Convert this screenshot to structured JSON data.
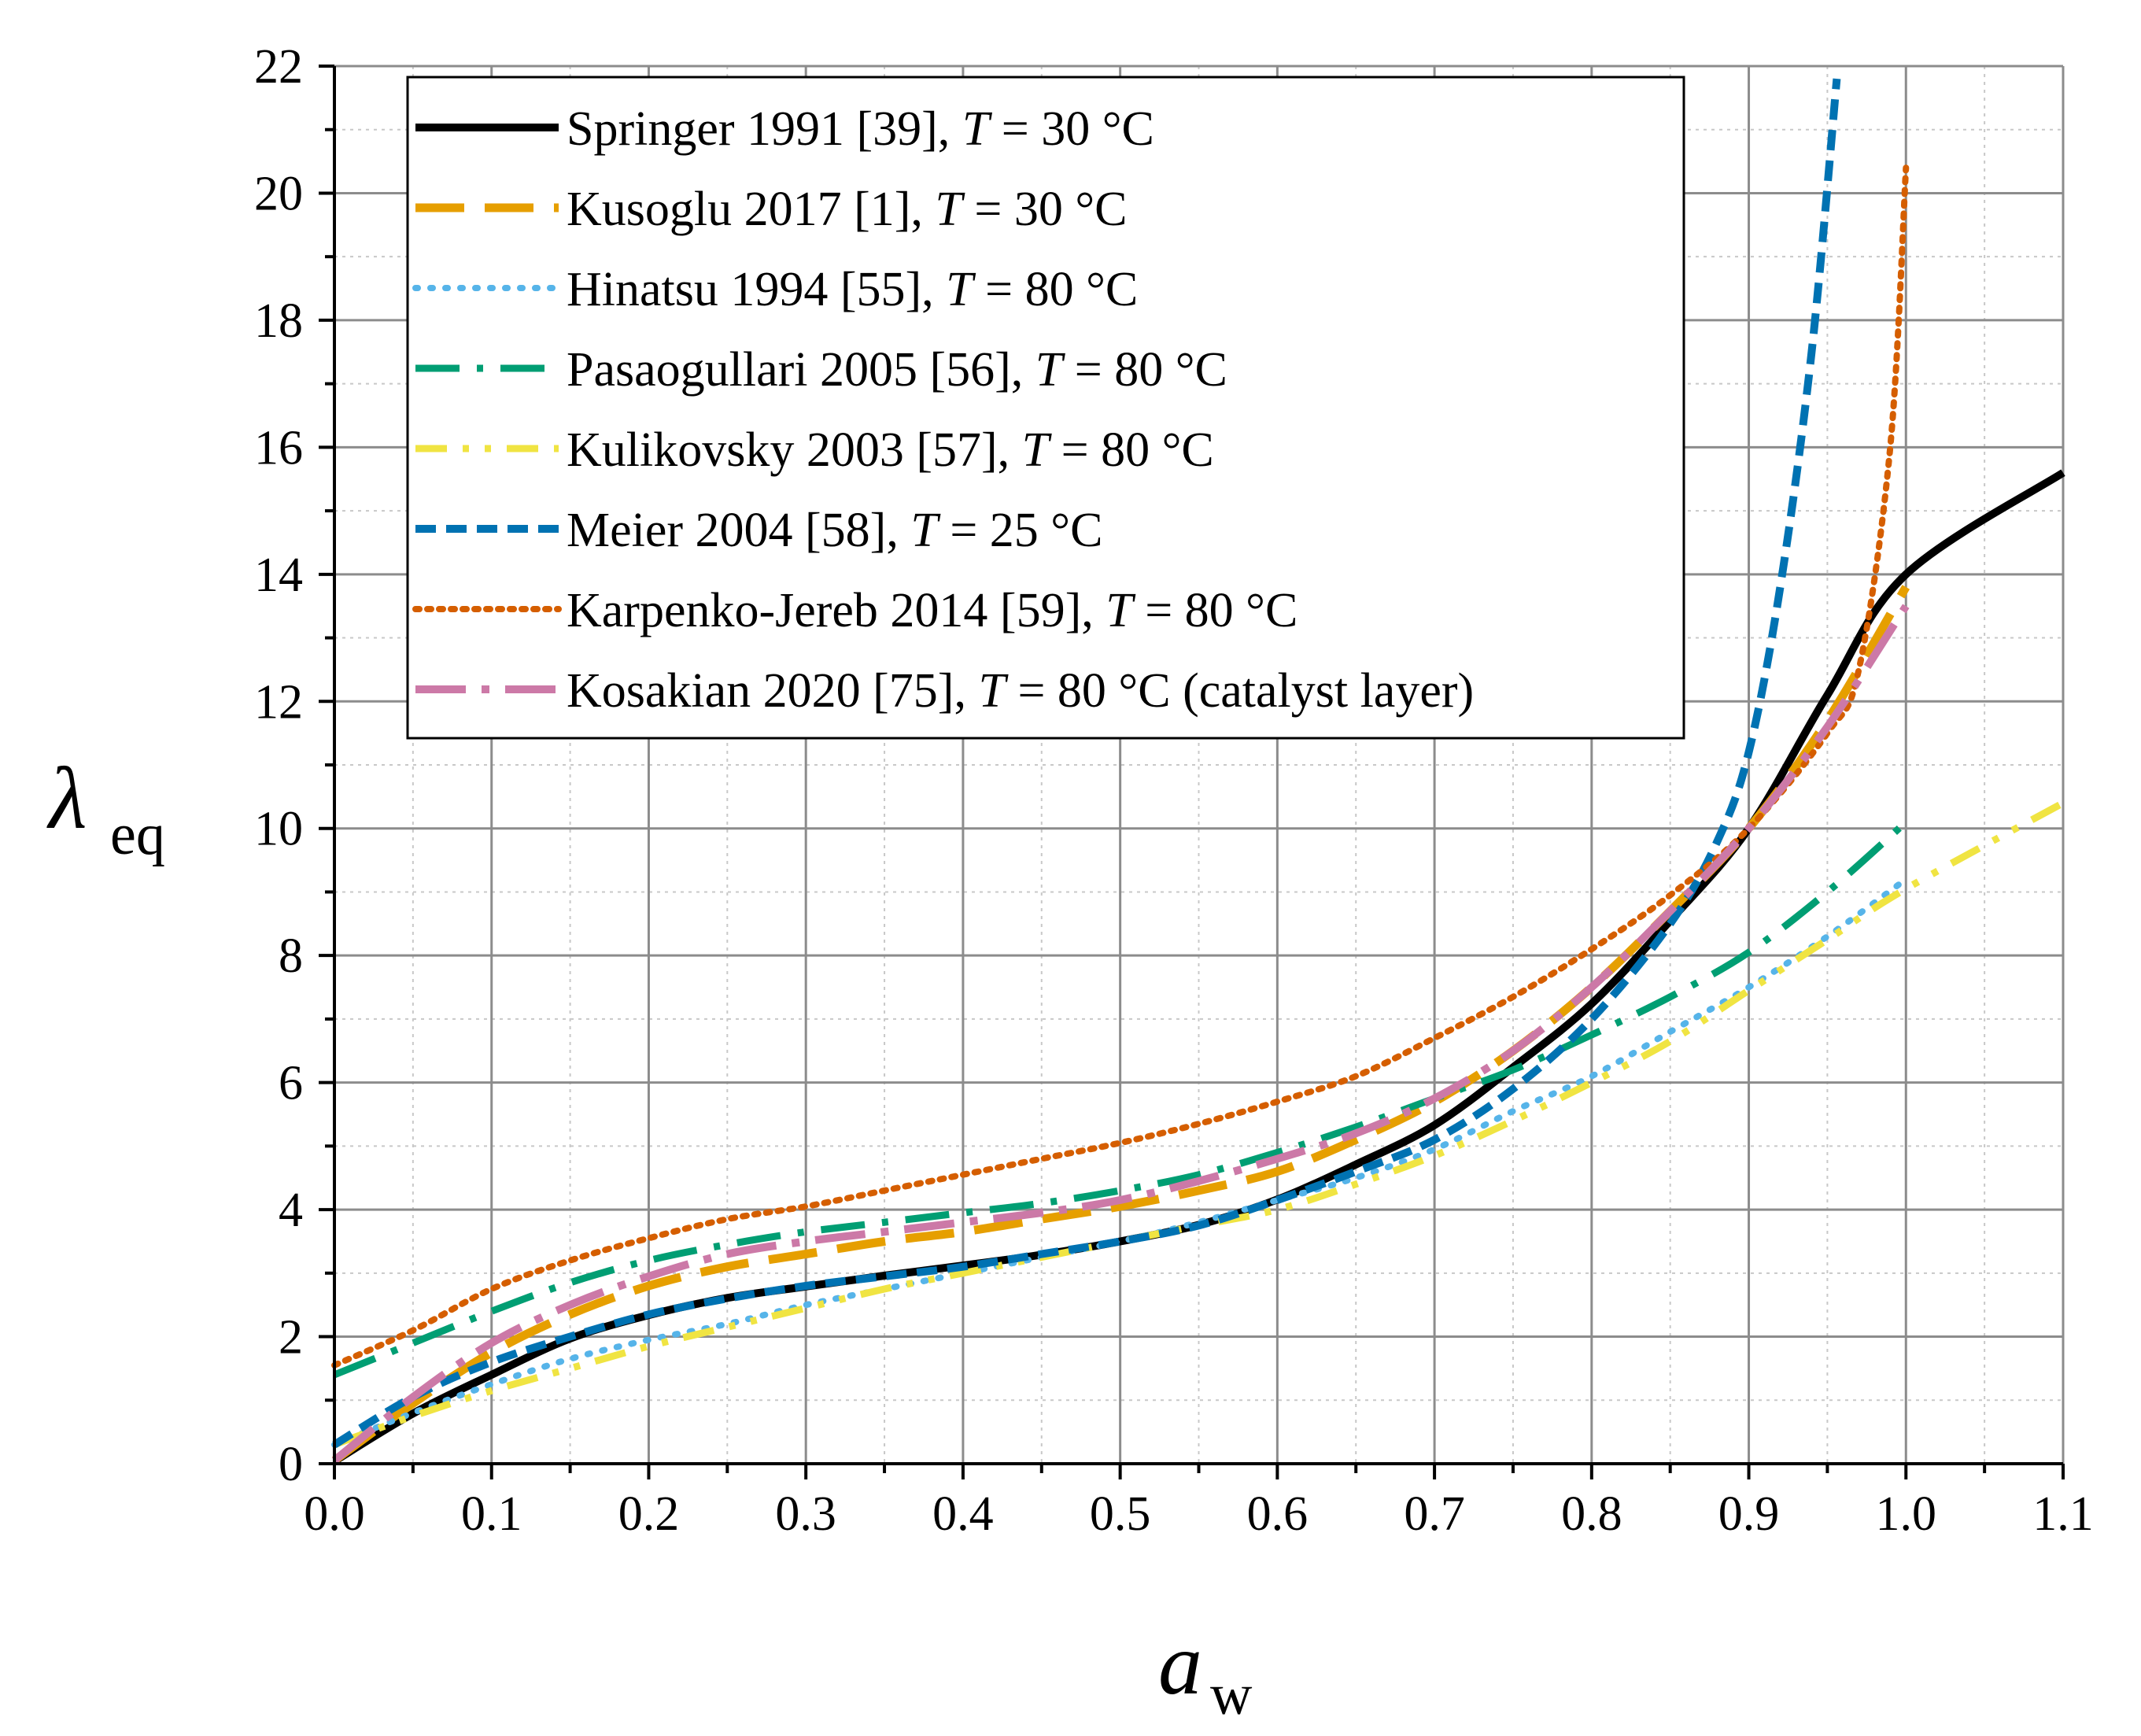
{
  "chart_data": {
    "type": "line",
    "xlabel": {
      "main": "a",
      "sub": "w"
    },
    "ylabel": {
      "main": "λ",
      "sub": "eq"
    },
    "xlim": [
      0,
      1.1
    ],
    "ylim": [
      0,
      22
    ],
    "xticks": [
      "0.0",
      "0.1",
      "0.2",
      "0.3",
      "0.4",
      "0.5",
      "0.6",
      "0.7",
      "0.8",
      "0.9",
      "1.0",
      "1.1"
    ],
    "yticks": [
      "0",
      "2",
      "4",
      "6",
      "8",
      "10",
      "12",
      "14",
      "16",
      "18",
      "20",
      "22"
    ],
    "grid": true,
    "legend_position": "top-left",
    "series": [
      {
        "name": "Springer 1991 [39], ",
        "temp": "T",
        "temp_value": " = 30 °C",
        "color": "#000000",
        "style": "solid",
        "x": [
          0,
          0.05,
          0.1,
          0.15,
          0.2,
          0.25,
          0.3,
          0.35,
          0.4,
          0.45,
          0.5,
          0.55,
          0.6,
          0.65,
          0.7,
          0.75,
          0.8,
          0.85,
          0.9,
          0.95,
          1.0,
          1.1
        ],
        "y": [
          0.04,
          0.79,
          1.4,
          1.97,
          2.34,
          2.61,
          2.79,
          2.96,
          3.12,
          3.29,
          3.5,
          3.76,
          4.16,
          4.71,
          5.33,
          6.24,
          7.24,
          8.55,
          10.0,
          12.1,
          14.0,
          15.6
        ]
      },
      {
        "name": "Kusoglu 2017 [1], ",
        "temp": "T",
        "temp_value": " = 30 °C",
        "color": "#E69F00",
        "style": "longdash",
        "x": [
          0,
          0.05,
          0.1,
          0.15,
          0.2,
          0.25,
          0.3,
          0.35,
          0.4,
          0.45,
          0.5,
          0.55,
          0.6,
          0.65,
          0.7,
          0.75,
          0.8,
          0.85,
          0.9,
          0.95,
          1.0
        ],
        "y": [
          0.05,
          0.95,
          1.75,
          2.35,
          2.8,
          3.1,
          3.3,
          3.5,
          3.65,
          3.85,
          4.05,
          4.3,
          4.6,
          5.1,
          5.7,
          6.5,
          7.5,
          8.7,
          10.0,
          11.7,
          13.8
        ]
      },
      {
        "name": "Hinatsu 1994 [55], ",
        "temp": "T",
        "temp_value": " = 80 °C",
        "color": "#56B4E9",
        "style": "dotted",
        "x": [
          0,
          0.05,
          0.1,
          0.15,
          0.2,
          0.25,
          0.3,
          0.35,
          0.4,
          0.45,
          0.5,
          0.55,
          0.6,
          0.65,
          0.7,
          0.75,
          0.8,
          0.85,
          0.9,
          0.95,
          1.0
        ],
        "y": [
          0.3,
          0.8,
          1.25,
          1.65,
          1.95,
          2.2,
          2.5,
          2.75,
          3.0,
          3.25,
          3.5,
          3.8,
          4.15,
          4.5,
          4.95,
          5.55,
          6.1,
          6.8,
          7.5,
          8.3,
          9.2
        ]
      },
      {
        "name": "Pasaogullari 2005 [56], ",
        "temp": "T",
        "temp_value": " = 80 °C",
        "color": "#009E73",
        "style": "dashdot",
        "x": [
          0,
          0.05,
          0.1,
          0.15,
          0.2,
          0.25,
          0.3,
          0.35,
          0.4,
          0.45,
          0.5,
          0.55,
          0.6,
          0.65,
          0.7,
          0.75,
          0.8,
          0.85,
          0.9,
          0.95,
          1.0
        ],
        "y": [
          1.4,
          1.9,
          2.4,
          2.85,
          3.2,
          3.45,
          3.65,
          3.8,
          3.95,
          4.1,
          4.3,
          4.55,
          4.9,
          5.3,
          5.75,
          6.2,
          6.75,
          7.35,
          8.05,
          9.0,
          10.1
        ]
      },
      {
        "name": "Kulikovsky 2003 [57], ",
        "temp": "T",
        "temp_value": " = 80 °C",
        "color": "#F0E442",
        "style": "dashdotdot",
        "x": [
          0,
          0.05,
          0.1,
          0.15,
          0.2,
          0.25,
          0.3,
          0.35,
          0.4,
          0.45,
          0.5,
          0.55,
          0.6,
          0.65,
          0.7,
          0.75,
          0.8,
          0.85,
          0.9,
          0.95,
          1.0,
          1.1
        ],
        "y": [
          0.3,
          0.75,
          1.15,
          1.5,
          1.85,
          2.15,
          2.45,
          2.75,
          3.0,
          3.25,
          3.5,
          3.75,
          4.0,
          4.4,
          4.85,
          5.4,
          6.0,
          6.65,
          7.45,
          8.25,
          9.05,
          10.4
        ]
      },
      {
        "name": "Meier 2004 [58], ",
        "temp": "T",
        "temp_value": " = 25 °C",
        "color": "#0072B2",
        "style": "shortdash",
        "x": [
          0,
          0.05,
          0.1,
          0.15,
          0.2,
          0.25,
          0.3,
          0.35,
          0.4,
          0.45,
          0.5,
          0.55,
          0.6,
          0.65,
          0.7,
          0.75,
          0.8,
          0.85,
          0.88,
          0.9,
          0.92,
          0.94,
          0.956
        ],
        "y": [
          0.3,
          1.05,
          1.6,
          2.0,
          2.35,
          2.6,
          2.8,
          2.95,
          3.1,
          3.3,
          3.5,
          3.75,
          4.15,
          4.6,
          5.1,
          5.9,
          7.0,
          8.5,
          9.8,
          11.2,
          13.8,
          17.5,
          21.8
        ]
      },
      {
        "name": "Karpenko-Jereb 2014 [59], ",
        "temp": "T",
        "temp_value": " = 80 °C",
        "color": "#D55E00",
        "style": "dense-dot",
        "x": [
          0,
          0.05,
          0.1,
          0.15,
          0.2,
          0.25,
          0.3,
          0.35,
          0.4,
          0.45,
          0.5,
          0.55,
          0.6,
          0.65,
          0.7,
          0.75,
          0.8,
          0.85,
          0.9,
          0.95,
          0.97,
          0.99,
          1.0
        ],
        "y": [
          1.55,
          2.1,
          2.75,
          3.2,
          3.55,
          3.85,
          4.05,
          4.3,
          4.55,
          4.8,
          5.05,
          5.35,
          5.7,
          6.1,
          6.7,
          7.35,
          8.1,
          8.95,
          10.0,
          11.5,
          12.5,
          16.0,
          20.4
        ]
      },
      {
        "name": "Kosakian 2020 [75], ",
        "temp": "T",
        "temp_value": " = 80 °C (catalyst layer)",
        "color": "#CC79A7",
        "style": "dashdot-long",
        "x": [
          0,
          0.05,
          0.1,
          0.15,
          0.2,
          0.25,
          0.3,
          0.35,
          0.4,
          0.45,
          0.5,
          0.55,
          0.6,
          0.65,
          0.7,
          0.75,
          0.8,
          0.85,
          0.9,
          0.95,
          1.0
        ],
        "y": [
          0.05,
          1.05,
          1.9,
          2.5,
          2.95,
          3.3,
          3.5,
          3.65,
          3.8,
          3.95,
          4.15,
          4.45,
          4.8,
          5.2,
          5.75,
          6.5,
          7.5,
          8.7,
          10.0,
          11.6,
          13.5
        ]
      }
    ]
  }
}
